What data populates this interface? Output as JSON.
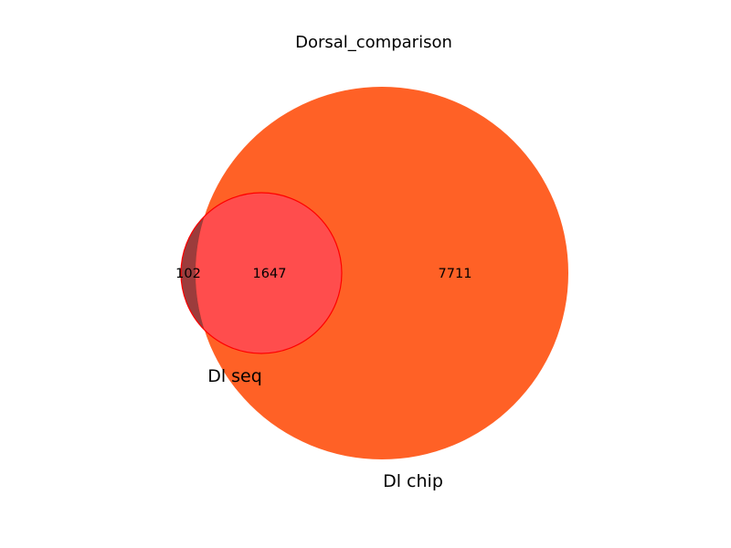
{
  "title": "Dorsal_comparison",
  "sets": [
    {
      "name": "Dl seq",
      "color": "#8b1a1a",
      "only_count": "102"
    },
    {
      "name": "Dl chip",
      "color": "#ff4500",
      "only_count": "7711"
    }
  ],
  "intersection": {
    "count": "1647",
    "color": "#ff4d4d",
    "edge_color": "#ff0000"
  }
}
